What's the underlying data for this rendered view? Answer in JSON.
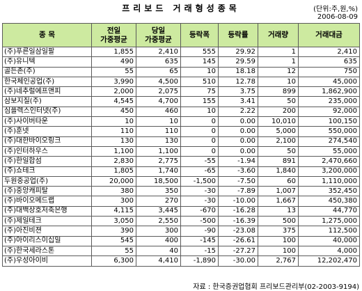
{
  "title": "프리보드 거래형성종목",
  "unit": "(단위:주,원,%)",
  "date": "2006-08-09",
  "headers": {
    "name": "종  목",
    "prev_avg_l1": "전일",
    "prev_avg_l2": "가중평균",
    "today_avg_l1": "당일",
    "today_avg_l2": "가중평균",
    "change": "등락폭",
    "rate": "등락률",
    "volume": "거래량",
    "amount": "거래대금"
  },
  "rows": [
    [
      "(주)푸른일삼일팔",
      "1,855",
      "2,410",
      "555",
      "29.92",
      "1",
      "2,410"
    ],
    [
      "(주)유니텍",
      "490",
      "635",
      "145",
      "29.59",
      "1",
      "635"
    ],
    [
      "골든존(주)",
      "55",
      "65",
      "10",
      "18.18",
      "12",
      "750"
    ],
    [
      "한국체인공업(주)",
      "3,990",
      "4,500",
      "510",
      "12.78",
      "10",
      "45,000"
    ],
    [
      "(주)네추럴에프앤피",
      "2,000",
      "2,075",
      "75",
      "3.75",
      "899",
      "1,862,900"
    ],
    [
      "삼보지질(주)",
      "4,545",
      "4,700",
      "155",
      "3.41",
      "50",
      "235,000"
    ],
    [
      "심플렉스인터넷(주)",
      "450",
      "460",
      "10",
      "2.22",
      "200",
      "92,000"
    ],
    [
      "(주)사이버타운",
      "10",
      "10",
      "0",
      "0.00",
      "10,010",
      "100,150"
    ],
    [
      "(주)훈넷",
      "110",
      "110",
      "0",
      "0.00",
      "5,000",
      "550,000"
    ],
    [
      "(주)대한바이오링크",
      "130",
      "130",
      "0",
      "0.00",
      "2,100",
      "274,540"
    ],
    [
      "(주)인터하우스",
      "1,100",
      "1,100",
      "0",
      "0.00",
      "50",
      "55,000"
    ],
    [
      "(주)한일합섬",
      "2,830",
      "2,775",
      "-55",
      "-1.94",
      "891",
      "2,470,660"
    ],
    [
      "(주)쇼테크",
      "1,805",
      "1,740",
      "-65",
      "-3.60",
      "1,840",
      "3,200,000"
    ],
    [
      "두원중공업(주)",
      "20,000",
      "18,500",
      "-1,500",
      "-7.50",
      "60",
      "1,110,000"
    ],
    [
      "(주)중앙캐피탈",
      "380",
      "350",
      "-30",
      "-7.89",
      "1,007",
      "352,450"
    ],
    [
      "(주)바이오메드랩",
      "300",
      "270",
      "-30",
      "-10.00",
      "1,667",
      "450,380"
    ],
    [
      "(주)대백상호저축은행",
      "4,115",
      "3,445",
      "-670",
      "-16.28",
      "13",
      "44,770"
    ],
    [
      "(주)제일테크",
      "3,050",
      "2,550",
      "-500",
      "-16.39",
      "500",
      "1,275,000"
    ],
    [
      "(주)아진비젼",
      "390",
      "300",
      "-90",
      "-23.08",
      "375",
      "112,500"
    ],
    [
      "(주)아이리스이십일",
      "545",
      "400",
      "-145",
      "-26.61",
      "100",
      "40,000"
    ],
    [
      "(주)한국세라스톤",
      "55",
      "40",
      "-15",
      "-27.27",
      "100",
      "4,000"
    ],
    [
      "(주)우성아이비",
      "6,300",
      "4,410",
      "-1,890",
      "-30.00",
      "2,767",
      "12,202,470"
    ]
  ],
  "source": "자료 : 한국증권업협회 프리보드관리부(02-2003-9194)"
}
